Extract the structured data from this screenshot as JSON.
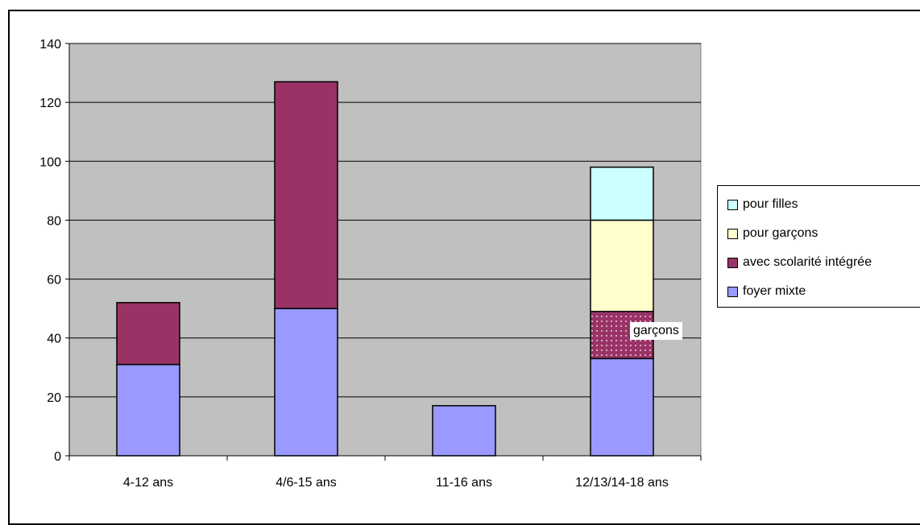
{
  "chart_data": {
    "type": "bar",
    "stacked": true,
    "categories": [
      "4-12 ans",
      "4/6-15 ans",
      "11-16 ans",
      "12/13/14-18 ans"
    ],
    "series": [
      {
        "name": "foyer mixte",
        "color": "#9999FF",
        "values": [
          31,
          50,
          17,
          33
        ]
      },
      {
        "name": "avec scolarité intégrée",
        "color": "#993366",
        "values": [
          21,
          77,
          0,
          16
        ]
      },
      {
        "name": "pour garçons",
        "color": "#FFFFCC",
        "values": [
          0,
          0,
          0,
          31
        ]
      },
      {
        "name": "pour filles",
        "color": "#CCFFFF",
        "values": [
          0,
          0,
          0,
          18
        ]
      }
    ],
    "ylim": [
      0,
      140
    ],
    "yticks": [
      0,
      20,
      40,
      60,
      80,
      100,
      120,
      140
    ],
    "grid": true,
    "plot_background": "#C0C0C0",
    "legend_position": "right",
    "annotation": {
      "text": "garçons",
      "category": "12/13/14-18 ans",
      "series": "avec scolarité intégrée",
      "pattern": "dotted"
    }
  },
  "legend": {
    "items": [
      {
        "label": "pour filles",
        "color": "#CCFFFF"
      },
      {
        "label": "pour garçons",
        "color": "#FFFFCC"
      },
      {
        "label": "avec scolarité intégrée",
        "color": "#993366"
      },
      {
        "label": "foyer mixte",
        "color": "#9999FF"
      }
    ]
  }
}
